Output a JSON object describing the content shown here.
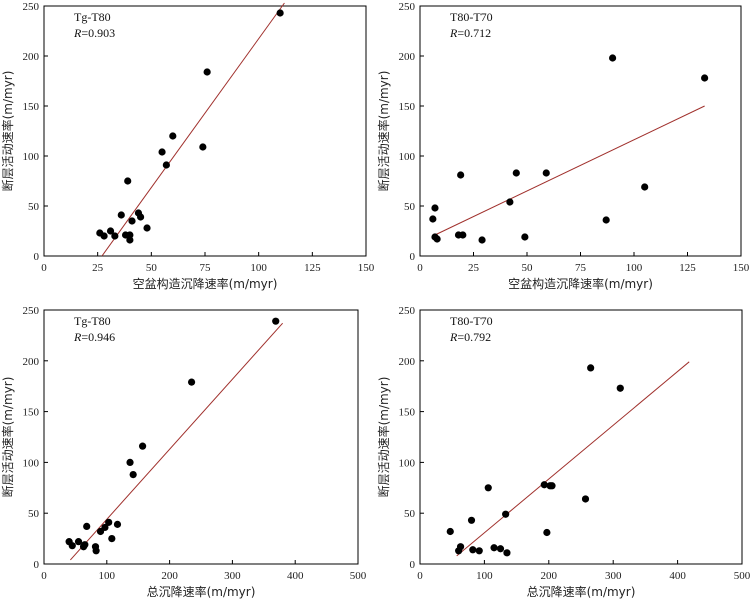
{
  "chart_data": [
    {
      "type": "scatter",
      "title": "Tg-T80",
      "r_label": "R",
      "r_value": "=0.903",
      "xlabel": "空盆构造沉降速率(m/myr)",
      "ylabel": "断层活动速率(m/myr)",
      "xlim": [
        0,
        150
      ],
      "ylim": [
        0,
        250
      ],
      "xticks": [
        "0",
        "25",
        "50",
        "75",
        "100",
        "125",
        "150"
      ],
      "yticks": [
        "0",
        "50",
        "100",
        "150",
        "200",
        "250"
      ],
      "grid": false,
      "points": [
        [
          26,
          23
        ],
        [
          28,
          20
        ],
        [
          31,
          25
        ],
        [
          33,
          20
        ],
        [
          36,
          41
        ],
        [
          38,
          21
        ],
        [
          39,
          75
        ],
        [
          40,
          16
        ],
        [
          40,
          21
        ],
        [
          41,
          35
        ],
        [
          44,
          43
        ],
        [
          45,
          39
        ],
        [
          48,
          28
        ],
        [
          55,
          104
        ],
        [
          57,
          91
        ],
        [
          60,
          120
        ],
        [
          74,
          109
        ],
        [
          76,
          184
        ],
        [
          110,
          243
        ]
      ],
      "fit": [
        [
          27,
          0
        ],
        [
          112,
          253
        ]
      ]
    },
    {
      "type": "scatter",
      "title": "T80-T70",
      "r_label": "R",
      "r_value": "=0.712",
      "xlabel": "空盆构造沉降速率(m/myr)",
      "ylabel": "断层活动速率(m/myr)",
      "xlim": [
        0,
        150
      ],
      "ylim": [
        0,
        250
      ],
      "xticks": [
        "0",
        "25",
        "50",
        "75",
        "100",
        "125",
        "150"
      ],
      "yticks": [
        "0",
        "50",
        "100",
        "150",
        "200",
        "250"
      ],
      "grid": false,
      "points": [
        [
          6,
          37
        ],
        [
          7,
          48
        ],
        [
          7,
          19
        ],
        [
          8,
          17
        ],
        [
          18,
          21
        ],
        [
          19,
          81
        ],
        [
          20,
          21
        ],
        [
          29,
          16
        ],
        [
          42,
          54
        ],
        [
          45,
          83
        ],
        [
          49,
          19
        ],
        [
          59,
          83
        ],
        [
          87,
          36
        ],
        [
          90,
          198
        ],
        [
          105,
          69
        ],
        [
          133,
          178
        ]
      ],
      "fit": [
        [
          6,
          20
        ],
        [
          133,
          150
        ]
      ]
    },
    {
      "type": "scatter",
      "title": "Tg-T80",
      "r_label": "R",
      "r_value": "=0.946",
      "xlabel": "总沉降速率(m/myr)",
      "ylabel": "断层活动速率(m/myr)",
      "xlim": [
        0,
        500
      ],
      "ylim": [
        0,
        250
      ],
      "xticks": [
        "0",
        "100",
        "200",
        "300",
        "400",
        "500"
      ],
      "yticks": [
        "0",
        "50",
        "100",
        "150",
        "200",
        "250"
      ],
      "grid": false,
      "points": [
        [
          40,
          22
        ],
        [
          45,
          18
        ],
        [
          55,
          22
        ],
        [
          63,
          17
        ],
        [
          65,
          19
        ],
        [
          68,
          37
        ],
        [
          82,
          17
        ],
        [
          83,
          13
        ],
        [
          90,
          32
        ],
        [
          97,
          36
        ],
        [
          103,
          41
        ],
        [
          108,
          25
        ],
        [
          117,
          39
        ],
        [
          137,
          100
        ],
        [
          142,
          88
        ],
        [
          157,
          116
        ],
        [
          235,
          179
        ],
        [
          369,
          239
        ]
      ],
      "fit": [
        [
          42,
          4
        ],
        [
          380,
          237
        ]
      ]
    },
    {
      "type": "scatter",
      "title": "T80-T70",
      "r_label": "R",
      "r_value": "=0.792",
      "xlabel": "总沉降速率(m/myr)",
      "ylabel": "断层活动速率(m/myr)",
      "xlim": [
        0,
        500
      ],
      "ylim": [
        0,
        250
      ],
      "xticks": [
        "0",
        "100",
        "200",
        "300",
        "400",
        "500"
      ],
      "yticks": [
        "0",
        "50",
        "100",
        "150",
        "200",
        "250"
      ],
      "grid": false,
      "points": [
        [
          47,
          32
        ],
        [
          60,
          13
        ],
        [
          63,
          17
        ],
        [
          80,
          43
        ],
        [
          82,
          14
        ],
        [
          92,
          13
        ],
        [
          106,
          75
        ],
        [
          115,
          16
        ],
        [
          125,
          15
        ],
        [
          133,
          49
        ],
        [
          135,
          11
        ],
        [
          193,
          78
        ],
        [
          197,
          31
        ],
        [
          202,
          77
        ],
        [
          205,
          77
        ],
        [
          257,
          64
        ],
        [
          265,
          193
        ],
        [
          311,
          173
        ]
      ],
      "fit": [
        [
          57,
          8
        ],
        [
          418,
          199
        ]
      ]
    }
  ]
}
